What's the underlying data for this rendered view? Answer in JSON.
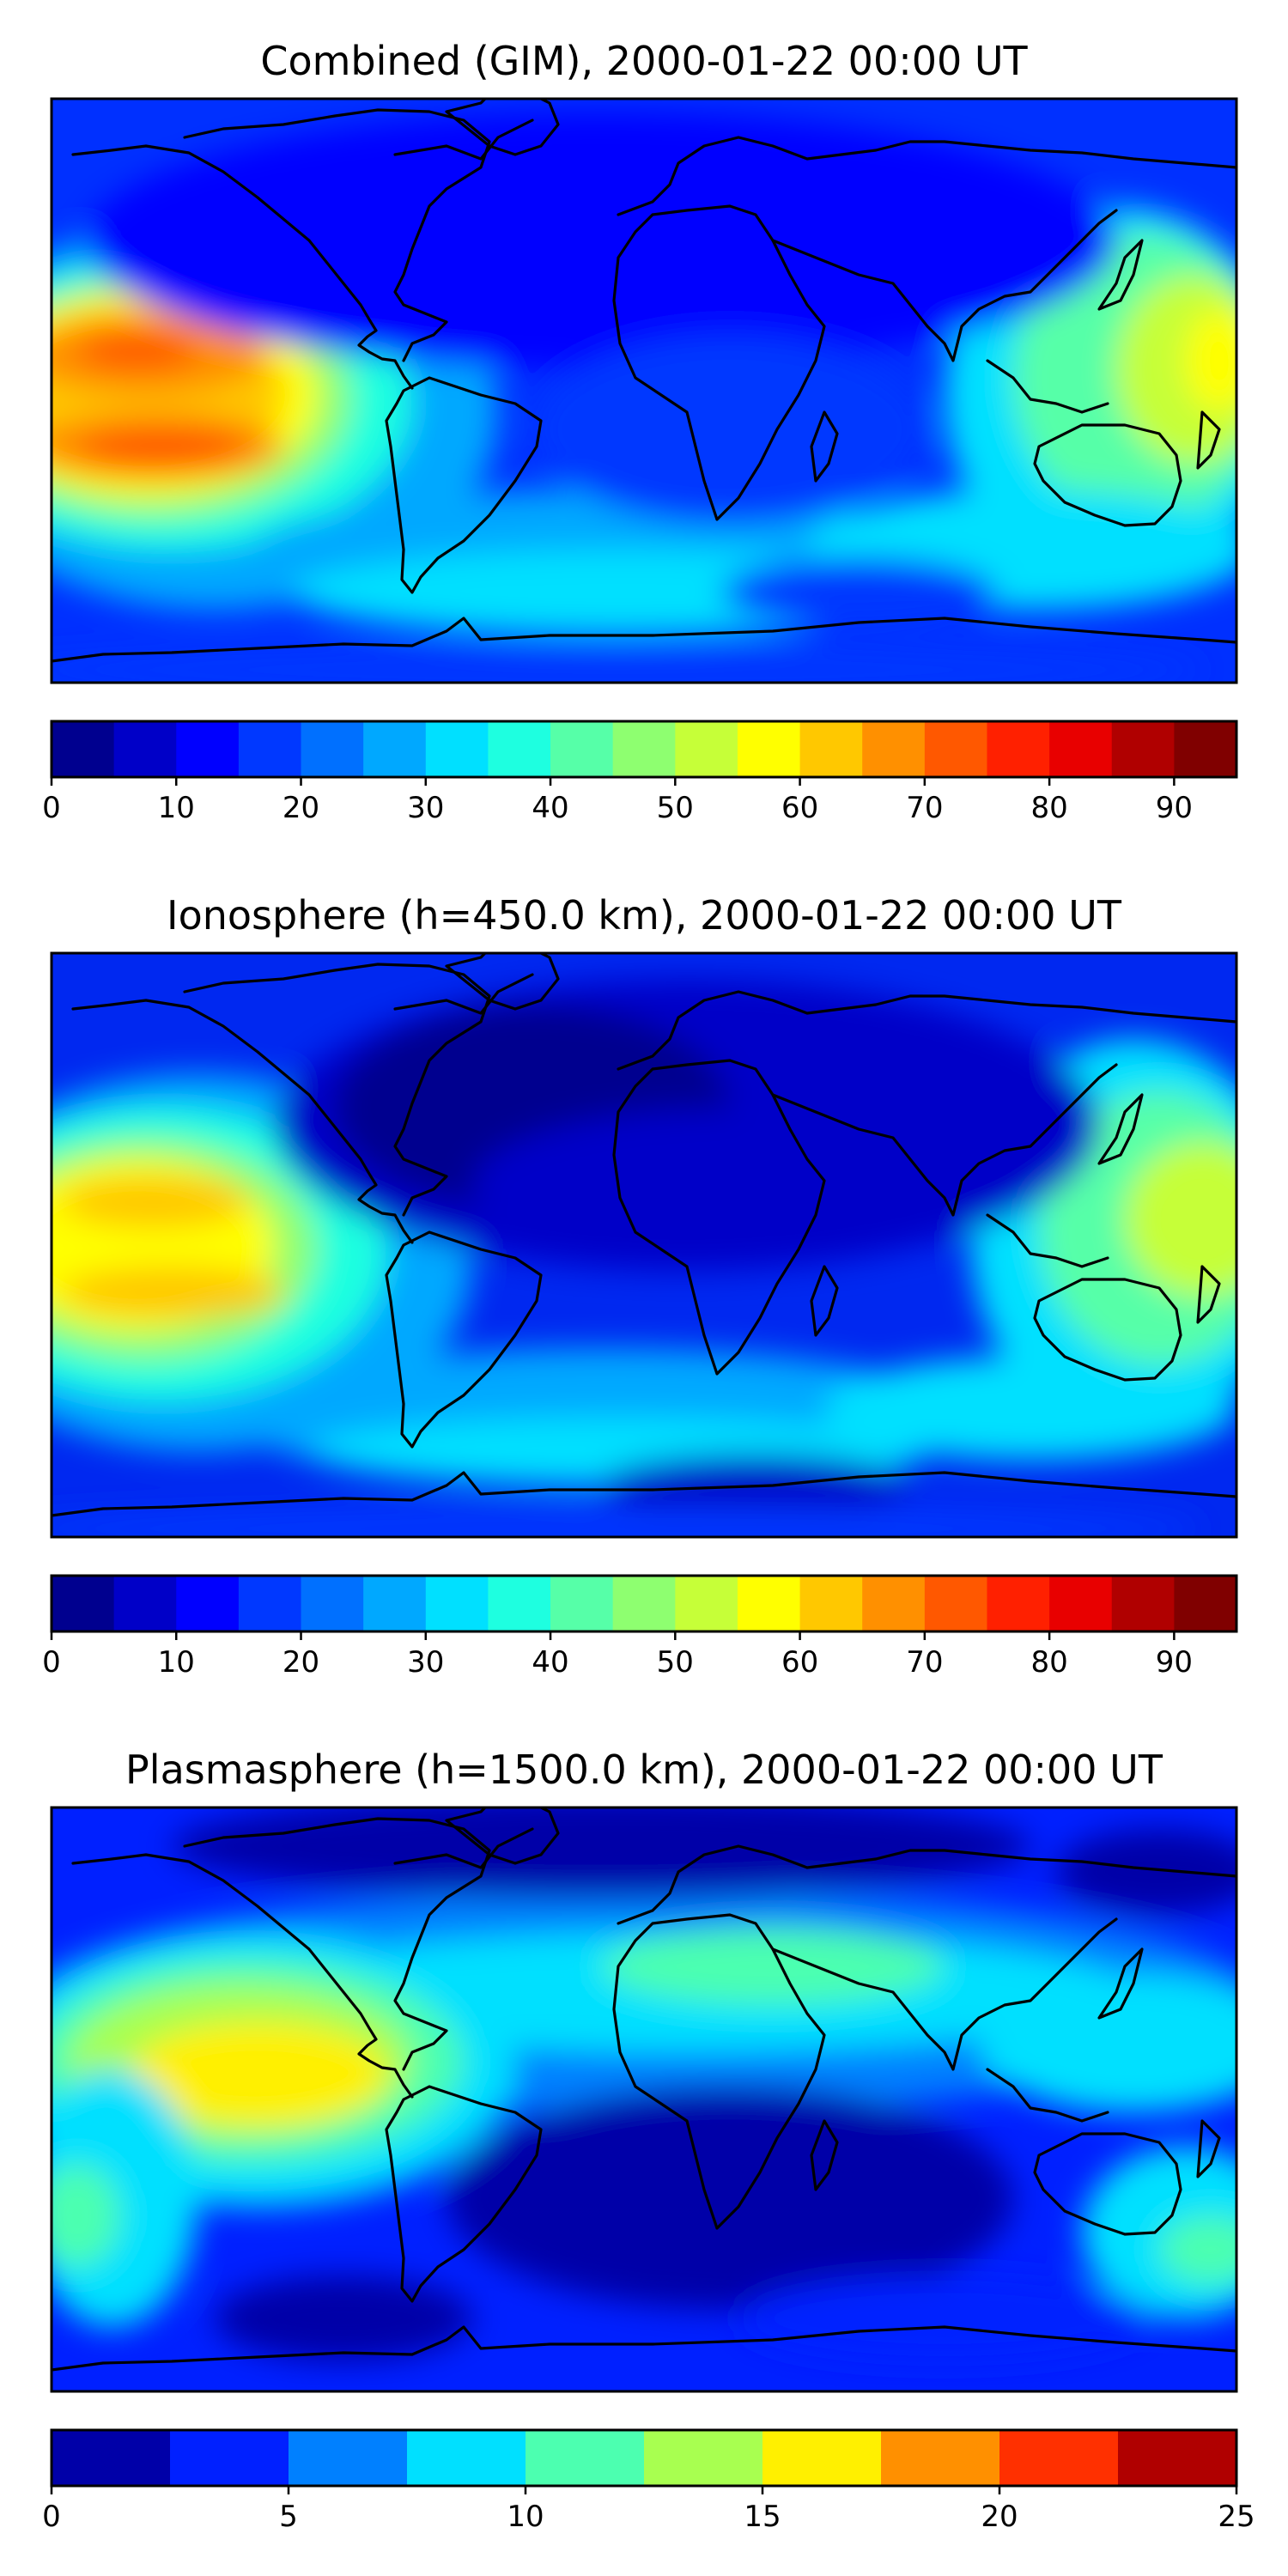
{
  "panels": [
    {
      "title": "Combined (GIM), 2000-01-22 00:00 UT",
      "colorbar": {
        "min": 0,
        "max": 95,
        "step": 5,
        "ticks": [
          "0",
          "10",
          "20",
          "30",
          "40",
          "50",
          "60",
          "70",
          "80",
          "90"
        ],
        "tick_values": [
          0,
          10,
          20,
          30,
          40,
          50,
          60,
          70,
          80,
          90
        ]
      }
    },
    {
      "title": "Ionosphere  (h=450.0 km), 2000-01-22 00:00 UT",
      "colorbar": {
        "min": 0,
        "max": 95,
        "step": 5,
        "ticks": [
          "0",
          "10",
          "20",
          "30",
          "40",
          "50",
          "60",
          "70",
          "80",
          "90"
        ],
        "tick_values": [
          0,
          10,
          20,
          30,
          40,
          50,
          60,
          70,
          80,
          90
        ]
      }
    },
    {
      "title": "Plasmasphere (h=1500.0 km), 2000-01-22 00:00 UT",
      "colorbar": {
        "min": 0,
        "max": 25,
        "step": 2.5,
        "ticks": [
          "0",
          "5",
          "10",
          "15",
          "20",
          "25"
        ],
        "tick_values": [
          0,
          5,
          10,
          15,
          20,
          25
        ]
      }
    }
  ],
  "colors": {
    "jet19": [
      "#00008f",
      "#0000c8",
      "#0000ff",
      "#0038ff",
      "#0070ff",
      "#00a8ff",
      "#00e0ff",
      "#1effe0",
      "#56ffa8",
      "#8eff70",
      "#c6ff38",
      "#ffff00",
      "#ffc800",
      "#ff9000",
      "#ff5800",
      "#ff2000",
      "#e80000",
      "#b00000",
      "#800000"
    ],
    "jet10": [
      "#0000a8",
      "#0020ff",
      "#0080ff",
      "#00e0ff",
      "#4cffb0",
      "#a8ff50",
      "#fff000",
      "#ff9000",
      "#ff3000",
      "#b00000"
    ],
    "background": "#0a3cff"
  }
}
